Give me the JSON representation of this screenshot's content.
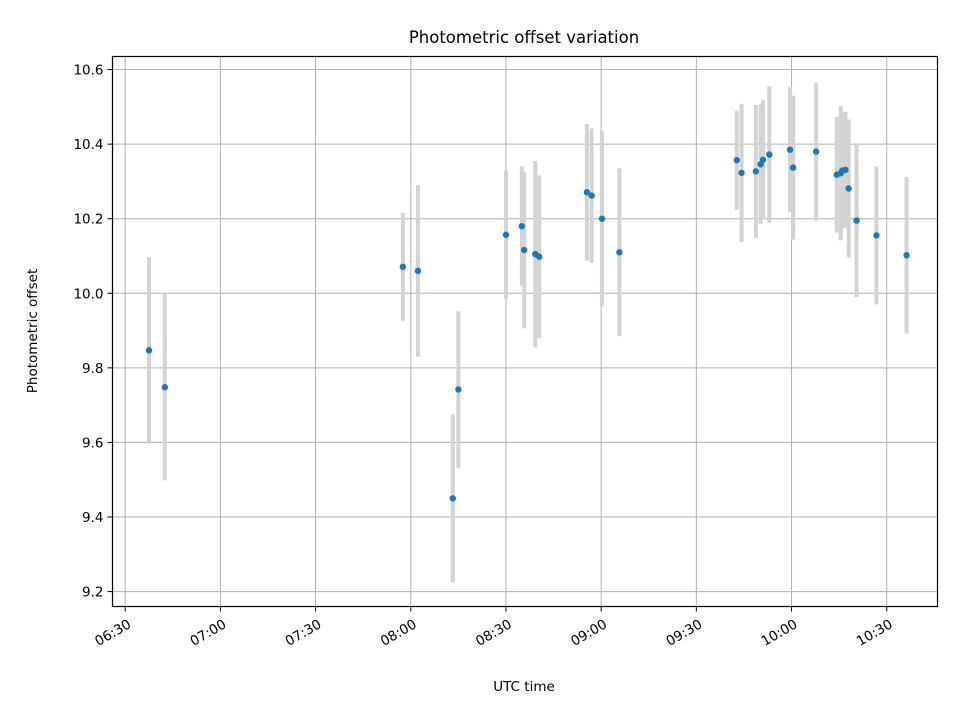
{
  "chart_data": {
    "type": "scatter",
    "title": "Photometric offset variation",
    "xlabel": "UTC time",
    "ylabel": "Photometric offset",
    "x_unit": "minutes",
    "xlim": [
      "06:26",
      "10:46"
    ],
    "ylim": [
      9.16,
      10.635
    ],
    "grid": true,
    "x_ticks": [
      "06:30",
      "07:00",
      "07:30",
      "08:00",
      "08:30",
      "09:00",
      "09:30",
      "10:00",
      "10:30"
    ],
    "y_ticks": [
      "9.2",
      "9.4",
      "9.6",
      "9.8",
      "10.0",
      "10.2",
      "10.4",
      "10.6"
    ],
    "point_color": "#1f77b4",
    "errorbar_color": "#d3d3d3",
    "points": [
      {
        "x": "06:37:30",
        "y": 9.847,
        "err": 0.25
      },
      {
        "x": "06:42:30",
        "y": 9.748,
        "err": 0.25
      },
      {
        "x": "07:57:30",
        "y": 10.071,
        "err": 0.145
      },
      {
        "x": "08:02:15",
        "y": 10.06,
        "err": 0.23
      },
      {
        "x": "08:13:15",
        "y": 9.45,
        "err": 0.225
      },
      {
        "x": "08:15:00",
        "y": 9.742,
        "err": 0.21
      },
      {
        "x": "08:30:00",
        "y": 10.157,
        "err": 0.172
      },
      {
        "x": "08:35:00",
        "y": 10.18,
        "err": 0.16
      },
      {
        "x": "08:35:45",
        "y": 10.116,
        "err": 0.21
      },
      {
        "x": "08:39:15",
        "y": 10.105,
        "err": 0.25
      },
      {
        "x": "08:40:30",
        "y": 10.098,
        "err": 0.218
      },
      {
        "x": "08:55:30",
        "y": 10.271,
        "err": 0.183
      },
      {
        "x": "08:57:00",
        "y": 10.262,
        "err": 0.18
      },
      {
        "x": "09:00:15",
        "y": 10.2,
        "err": 0.235
      },
      {
        "x": "09:05:45",
        "y": 10.11,
        "err": 0.225
      },
      {
        "x": "09:42:45",
        "y": 10.357,
        "err": 0.133
      },
      {
        "x": "09:44:15",
        "y": 10.323,
        "err": 0.185
      },
      {
        "x": "09:48:45",
        "y": 10.327,
        "err": 0.178
      },
      {
        "x": "09:50:15",
        "y": 10.346,
        "err": 0.16
      },
      {
        "x": "09:51:00",
        "y": 10.358,
        "err": 0.16
      },
      {
        "x": "09:53:00",
        "y": 10.372,
        "err": 0.183
      },
      {
        "x": "09:59:30",
        "y": 10.385,
        "err": 0.168
      },
      {
        "x": "10:00:30",
        "y": 10.337,
        "err": 0.193
      },
      {
        "x": "10:07:45",
        "y": 10.38,
        "err": 0.185
      },
      {
        "x": "10:14:15",
        "y": 10.318,
        "err": 0.155
      },
      {
        "x": "10:15:30",
        "y": 10.322,
        "err": 0.18
      },
      {
        "x": "10:16:00",
        "y": 10.329,
        "err": 0.155
      },
      {
        "x": "10:17:00",
        "y": 10.331,
        "err": 0.155
      },
      {
        "x": "10:18:00",
        "y": 10.281,
        "err": 0.185
      },
      {
        "x": "10:20:30",
        "y": 10.195,
        "err": 0.205
      },
      {
        "x": "10:26:45",
        "y": 10.155,
        "err": 0.185
      },
      {
        "x": "10:36:15",
        "y": 10.102,
        "err": 0.21
      }
    ]
  }
}
